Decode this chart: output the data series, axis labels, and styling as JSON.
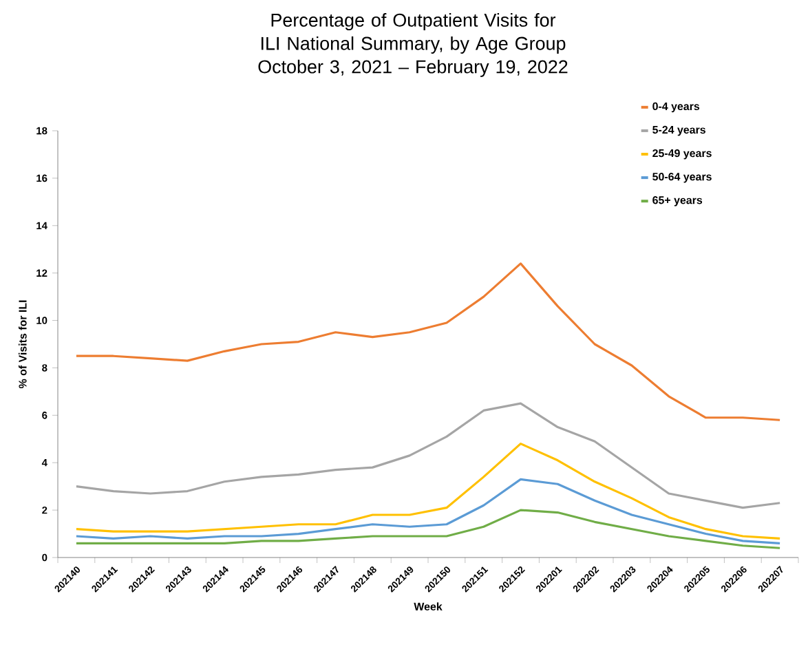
{
  "chart_data": {
    "type": "line",
    "title": "Percentage of Outpatient Visits for ILI National Summary, by Age Group",
    "subtitle": "October 3, 2021 – February 19, 2022",
    "xlabel": "Week",
    "ylabel": "% of Visits for ILI",
    "categories": [
      "202140",
      "202141",
      "202142",
      "202143",
      "202144",
      "202145",
      "202146",
      "202147",
      "202148",
      "202149",
      "202150",
      "202151",
      "202152",
      "202201",
      "202202",
      "202203",
      "202204",
      "202205",
      "202206",
      "202207"
    ],
    "series": [
      {
        "name": "0-4 years",
        "color": "#ed7d31",
        "values": [
          8.5,
          8.5,
          8.4,
          8.3,
          8.7,
          9.0,
          9.1,
          9.5,
          9.3,
          9.5,
          9.9,
          11.0,
          12.4,
          10.6,
          9.0,
          8.1,
          6.8,
          5.9,
          5.9,
          5.8
        ]
      },
      {
        "name": "5-24 years",
        "color": "#a5a5a5",
        "values": [
          3.0,
          2.8,
          2.7,
          2.8,
          3.2,
          3.4,
          3.5,
          3.7,
          3.8,
          4.3,
          5.1,
          6.2,
          6.5,
          5.5,
          4.9,
          3.8,
          2.7,
          2.4,
          2.1,
          2.3
        ]
      },
      {
        "name": "25-49 years",
        "color": "#ffc000",
        "values": [
          1.2,
          1.1,
          1.1,
          1.1,
          1.2,
          1.3,
          1.4,
          1.4,
          1.8,
          1.8,
          2.1,
          3.4,
          4.8,
          4.1,
          3.2,
          2.5,
          1.7,
          1.2,
          0.9,
          0.8
        ]
      },
      {
        "name": "50-64 years",
        "color": "#5b9bd5",
        "values": [
          0.9,
          0.8,
          0.9,
          0.8,
          0.9,
          0.9,
          1.0,
          1.2,
          1.4,
          1.3,
          1.4,
          2.2,
          3.3,
          3.1,
          2.4,
          1.8,
          1.4,
          1.0,
          0.7,
          0.6
        ]
      },
      {
        "name": "65+ years",
        "color": "#70ad47",
        "values": [
          0.6,
          0.6,
          0.6,
          0.6,
          0.6,
          0.7,
          0.7,
          0.8,
          0.9,
          0.9,
          0.9,
          1.3,
          2.0,
          1.9,
          1.5,
          1.2,
          0.9,
          0.7,
          0.5,
          0.4
        ]
      }
    ],
    "ylim": [
      0,
      18
    ],
    "yticks": [
      0,
      2,
      4,
      6,
      8,
      10,
      12,
      14,
      16,
      18
    ],
    "grid": false,
    "legend": "top right",
    "marker": "none",
    "line_style": "solid"
  }
}
